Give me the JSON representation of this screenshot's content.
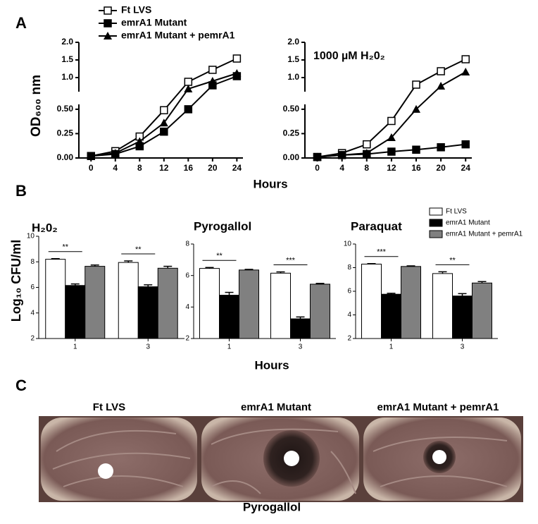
{
  "figure": {
    "panels": [
      "A",
      "B",
      "C"
    ],
    "x_label_a": "Hours",
    "y_label_a": "OD₆₀₀ nm",
    "x_label_b": "Hours",
    "y_label_b": "Log₁₀ CFU/ml",
    "photo": {
      "labels": [
        "Ft LVS",
        "emrA1 Mutant",
        "emrA1 Mutant + pemrA1"
      ],
      "caption": "Pyrogallol"
    }
  },
  "chart_data": [
    {
      "type": "line",
      "x": [
        0,
        4,
        8,
        12,
        16,
        20,
        24
      ],
      "xlim": [
        -2,
        25
      ],
      "xticks": [
        0,
        4,
        8,
        12,
        16,
        20,
        24
      ],
      "ylim": [
        0,
        2.0
      ],
      "axis_break": [
        0.55,
        0.6
      ],
      "yticks": [
        {
          "value": 0,
          "label": "0.00"
        },
        {
          "value": 0.25,
          "label": "0.25"
        },
        {
          "value": 0.5,
          "label": "0.50"
        },
        {
          "value": 1.0,
          "label": "1.0"
        },
        {
          "value": 1.5,
          "label": "1.5"
        },
        {
          "value": 2.0,
          "label": "2.0"
        }
      ],
      "legend": "top-left",
      "series": [
        {
          "name": "Ft LVS",
          "color": "#000000",
          "marker": "square-open",
          "values": [
            0.02,
            0.07,
            0.22,
            0.49,
            0.88,
            1.22,
            1.54
          ]
        },
        {
          "name": "emrA1 Mutant",
          "color": "#000000",
          "marker": "square",
          "values": [
            0.02,
            0.04,
            0.12,
            0.27,
            0.5,
            0.78,
            1.04
          ]
        },
        {
          "name": "emrA1 Mutant + pemrA1",
          "color": "#000000",
          "marker": "triangle",
          "values": [
            0.02,
            0.05,
            0.17,
            0.36,
            0.68,
            0.9,
            1.12
          ]
        }
      ]
    },
    {
      "type": "line",
      "x": [
        0,
        4,
        8,
        12,
        16,
        20,
        24
      ],
      "xlim": [
        -2,
        25
      ],
      "xticks": [
        0,
        4,
        8,
        12,
        16,
        20,
        24
      ],
      "ylim": [
        0,
        2.0
      ],
      "axis_break": [
        0.55,
        0.6
      ],
      "annotation": "1000 µM H₂0₂",
      "yticks": [
        {
          "value": 0,
          "label": "0.00"
        },
        {
          "value": 0.25,
          "label": "0.25"
        },
        {
          "value": 0.5,
          "label": "0.50"
        },
        {
          "value": 1.0,
          "label": "1.0"
        },
        {
          "value": 1.5,
          "label": "1.5"
        },
        {
          "value": 2.0,
          "label": "2.0"
        }
      ],
      "series": [
        {
          "color": "#000000",
          "marker": "square-open",
          "values": [
            0.01,
            0.05,
            0.14,
            0.38,
            0.8,
            1.18,
            1.52
          ]
        },
        {
          "color": "#000000",
          "marker": "square",
          "values": [
            0.01,
            0.03,
            0.04,
            0.065,
            0.085,
            0.11,
            0.14
          ]
        },
        {
          "color": "#000000",
          "marker": "triangle",
          "values": [
            0.01,
            0.03,
            0.05,
            0.21,
            0.5,
            0.76,
            1.16
          ]
        }
      ]
    },
    {
      "type": "bar",
      "title": "H₂0₂",
      "categories": [
        "1",
        "3"
      ],
      "ylim": [
        2,
        10
      ],
      "yticks": [
        2,
        4,
        6,
        8,
        10
      ],
      "significance": [
        "**",
        "**"
      ],
      "series": [
        {
          "color": "#ffffff",
          "values": [
            8.2,
            7.95
          ],
          "errors": [
            0.05,
            0.12
          ]
        },
        {
          "color": "#000000",
          "values": [
            6.15,
            6.05
          ],
          "errors": [
            0.12,
            0.15
          ]
        },
        {
          "color": "#808080",
          "values": [
            7.65,
            7.5
          ],
          "errors": [
            0.1,
            0.15
          ]
        }
      ]
    },
    {
      "type": "bar",
      "title": "Pyrogallol",
      "categories": [
        "1",
        "3"
      ],
      "ylim": [
        2,
        8
      ],
      "yticks": [
        2,
        4,
        6,
        8
      ],
      "significance": [
        "**",
        "***"
      ],
      "series": [
        {
          "color": "#ffffff",
          "values": [
            6.45,
            6.15
          ],
          "errors": [
            0.06,
            0.08
          ]
        },
        {
          "color": "#000000",
          "values": [
            4.75,
            3.25
          ],
          "errors": [
            0.18,
            0.12
          ]
        },
        {
          "color": "#808080",
          "values": [
            6.35,
            5.45
          ],
          "errors": [
            0.04,
            0.05
          ]
        }
      ]
    },
    {
      "type": "bar",
      "title": "Paraquat",
      "categories": [
        "1",
        "3"
      ],
      "ylim": [
        2,
        10
      ],
      "yticks": [
        2,
        4,
        6,
        8,
        10
      ],
      "significance": [
        "***",
        "**"
      ],
      "legend": "top-right",
      "series": [
        {
          "name": "Ft LVS",
          "color": "#ffffff",
          "values": [
            8.3,
            7.5
          ],
          "errors": [
            0.04,
            0.15
          ]
        },
        {
          "name": "emrA1 Mutant",
          "color": "#000000",
          "values": [
            5.75,
            5.6
          ],
          "errors": [
            0.08,
            0.2
          ]
        },
        {
          "name": "emrA1 Mutant + pemrA1",
          "color": "#808080",
          "values": [
            8.1,
            6.7
          ],
          "errors": [
            0.05,
            0.12
          ]
        }
      ]
    }
  ]
}
